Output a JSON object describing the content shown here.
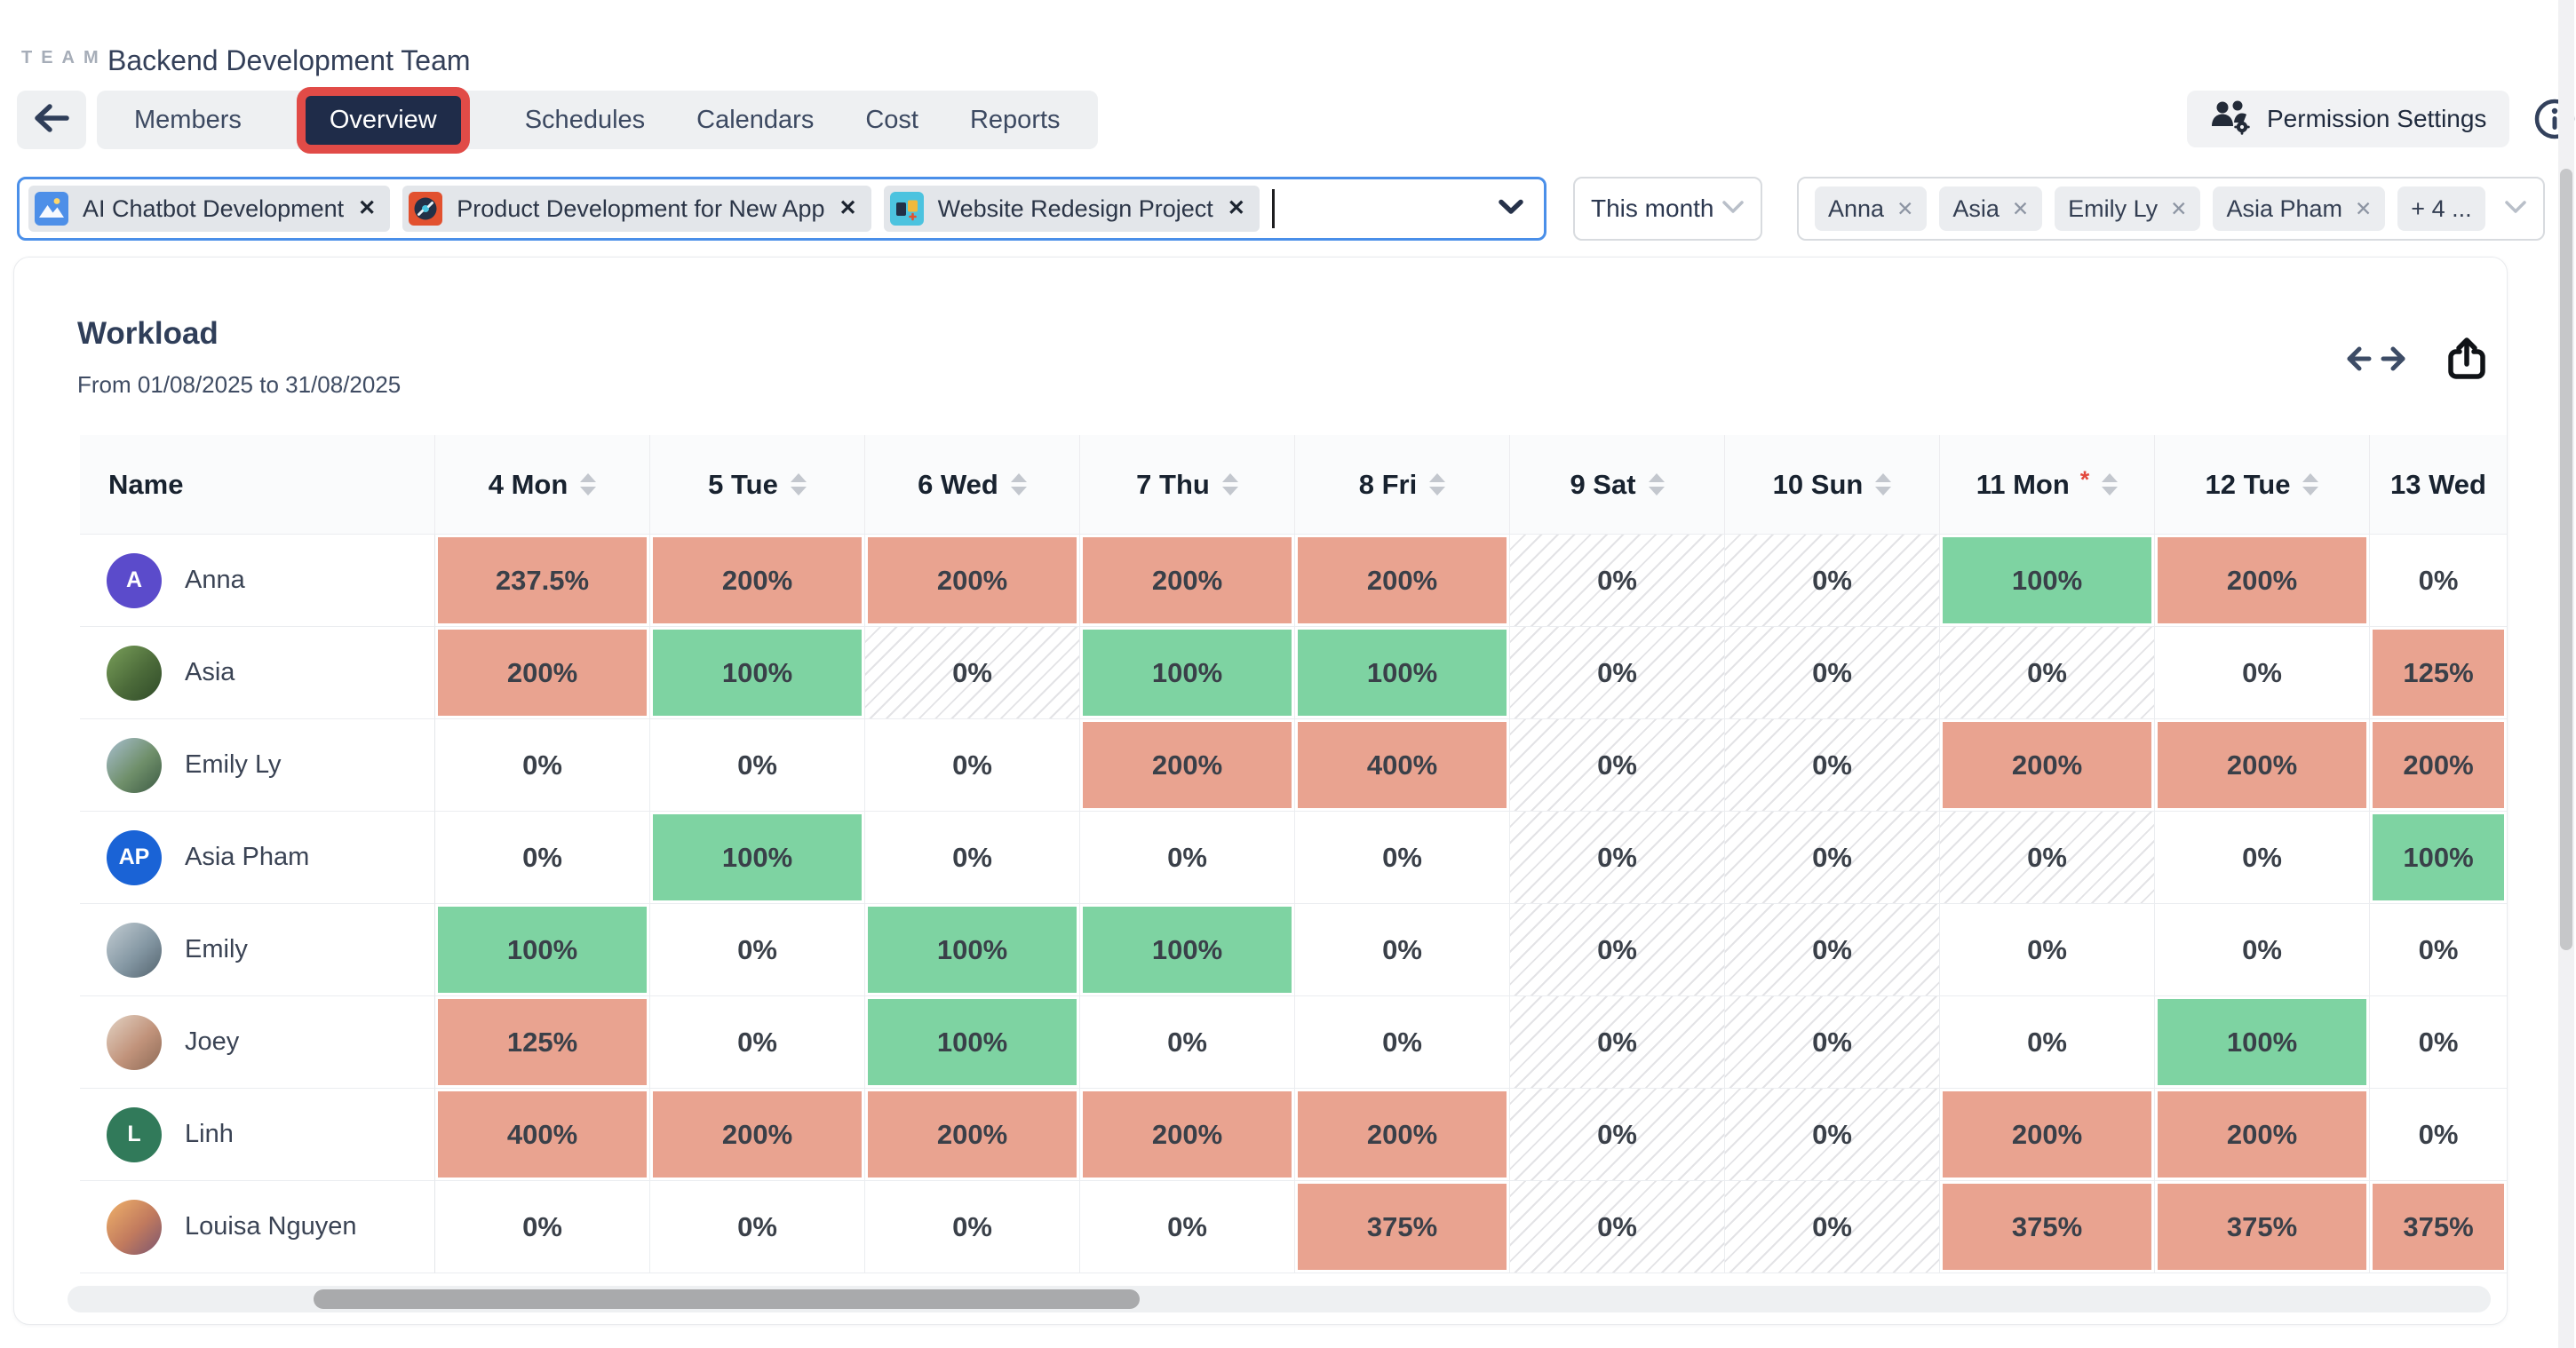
{
  "header": {
    "logo_text": "TEAM",
    "team_name": "Backend Development Team",
    "tabs": [
      {
        "label": "Members",
        "active": false
      },
      {
        "label": "Overview",
        "active": true,
        "highlighted": true
      },
      {
        "label": "Schedules",
        "active": false
      },
      {
        "label": "Calendars",
        "active": false
      },
      {
        "label": "Cost",
        "active": false
      },
      {
        "label": "Reports",
        "active": false
      }
    ],
    "permission_button_label": "Permission Settings"
  },
  "filters": {
    "project_select": {
      "chips": [
        {
          "label": "AI Chatbot Development",
          "icon": "image-mountain-icon",
          "icon_bg": "#4d8fe8"
        },
        {
          "label": "Product Development for New App",
          "icon": "disc-icon",
          "icon_bg": "#e2512f"
        },
        {
          "label": "Website Redesign Project",
          "icon": "design-blocks-icon",
          "icon_bg": "#4cc3df"
        }
      ],
      "remove_glyph": "✕"
    },
    "period_select": {
      "value": "This month"
    },
    "member_select": {
      "chips": [
        {
          "label": "Anna"
        },
        {
          "label": "Asia"
        },
        {
          "label": "Emily Ly"
        },
        {
          "label": "Asia Pham"
        }
      ],
      "overflow_label": "+ 4 ...",
      "remove_glyph": "✕"
    }
  },
  "workload": {
    "title": "Workload",
    "date_range": "From 01/08/2025 to 31/08/2025"
  },
  "table": {
    "columns": [
      {
        "label": "Name",
        "sortable": false
      },
      {
        "label": "4 Mon",
        "sortable": true
      },
      {
        "label": "5 Tue",
        "sortable": true
      },
      {
        "label": "6 Wed",
        "sortable": true
      },
      {
        "label": "7 Thu",
        "sortable": true
      },
      {
        "label": "8 Fri",
        "sortable": true
      },
      {
        "label": "9 Sat",
        "sortable": true,
        "weekend": true
      },
      {
        "label": "10 Sun",
        "sortable": true,
        "weekend": true
      },
      {
        "label": "11 Mon",
        "sortable": true,
        "required": true,
        "required_glyph": "*"
      },
      {
        "label": "12 Tue",
        "sortable": true
      },
      {
        "label": "13 Wed",
        "sortable": false,
        "clipped": true
      }
    ],
    "rows": [
      {
        "name": "Anna",
        "avatar": {
          "type": "initials",
          "text": "A",
          "bg": "#5b4bcb"
        },
        "cells": [
          {
            "value": "237.5%",
            "state": "over"
          },
          {
            "value": "200%",
            "state": "over"
          },
          {
            "value": "200%",
            "state": "over"
          },
          {
            "value": "200%",
            "state": "over"
          },
          {
            "value": "200%",
            "state": "over"
          },
          {
            "value": "0%",
            "state": "off"
          },
          {
            "value": "0%",
            "state": "off"
          },
          {
            "value": "100%",
            "state": "ok"
          },
          {
            "value": "200%",
            "state": "over"
          },
          {
            "value": "0%",
            "state": "zero"
          }
        ]
      },
      {
        "name": "Asia",
        "avatar": {
          "type": "photo",
          "colors": [
            "#7aa05a",
            "#4c6b3a",
            "#2f4a28"
          ]
        },
        "cells": [
          {
            "value": "200%",
            "state": "over"
          },
          {
            "value": "100%",
            "state": "ok"
          },
          {
            "value": "0%",
            "state": "off"
          },
          {
            "value": "100%",
            "state": "ok"
          },
          {
            "value": "100%",
            "state": "ok"
          },
          {
            "value": "0%",
            "state": "off"
          },
          {
            "value": "0%",
            "state": "off"
          },
          {
            "value": "0%",
            "state": "off"
          },
          {
            "value": "0%",
            "state": "zero"
          },
          {
            "value": "125%",
            "state": "over"
          }
        ]
      },
      {
        "name": "Emily Ly",
        "avatar": {
          "type": "photo",
          "colors": [
            "#a8bfd0",
            "#6f8f6a",
            "#3c5a44"
          ]
        },
        "cells": [
          {
            "value": "0%",
            "state": "zero"
          },
          {
            "value": "0%",
            "state": "zero"
          },
          {
            "value": "0%",
            "state": "zero"
          },
          {
            "value": "200%",
            "state": "over"
          },
          {
            "value": "400%",
            "state": "over"
          },
          {
            "value": "0%",
            "state": "off"
          },
          {
            "value": "0%",
            "state": "off"
          },
          {
            "value": "200%",
            "state": "over"
          },
          {
            "value": "200%",
            "state": "over"
          },
          {
            "value": "200%",
            "state": "over"
          }
        ]
      },
      {
        "name": "Asia Pham",
        "avatar": {
          "type": "initials",
          "text": "AP",
          "bg": "#1a63d6"
        },
        "cells": [
          {
            "value": "0%",
            "state": "zero"
          },
          {
            "value": "100%",
            "state": "ok"
          },
          {
            "value": "0%",
            "state": "zero"
          },
          {
            "value": "0%",
            "state": "zero"
          },
          {
            "value": "0%",
            "state": "zero"
          },
          {
            "value": "0%",
            "state": "off"
          },
          {
            "value": "0%",
            "state": "off"
          },
          {
            "value": "0%",
            "state": "off"
          },
          {
            "value": "0%",
            "state": "zero"
          },
          {
            "value": "100%",
            "state": "ok"
          }
        ]
      },
      {
        "name": "Emily",
        "avatar": {
          "type": "photo",
          "colors": [
            "#c3cdd3",
            "#8598a4",
            "#53636e"
          ]
        },
        "cells": [
          {
            "value": "100%",
            "state": "ok"
          },
          {
            "value": "0%",
            "state": "zero"
          },
          {
            "value": "100%",
            "state": "ok"
          },
          {
            "value": "100%",
            "state": "ok"
          },
          {
            "value": "0%",
            "state": "zero"
          },
          {
            "value": "0%",
            "state": "off"
          },
          {
            "value": "0%",
            "state": "off"
          },
          {
            "value": "0%",
            "state": "zero"
          },
          {
            "value": "0%",
            "state": "zero"
          },
          {
            "value": "0%",
            "state": "zero"
          }
        ]
      },
      {
        "name": "Joey",
        "avatar": {
          "type": "photo",
          "colors": [
            "#e3d3c4",
            "#c1937b",
            "#8d6a56"
          ]
        },
        "cells": [
          {
            "value": "125%",
            "state": "over"
          },
          {
            "value": "0%",
            "state": "zero"
          },
          {
            "value": "100%",
            "state": "ok"
          },
          {
            "value": "0%",
            "state": "zero"
          },
          {
            "value": "0%",
            "state": "zero"
          },
          {
            "value": "0%",
            "state": "off"
          },
          {
            "value": "0%",
            "state": "off"
          },
          {
            "value": "0%",
            "state": "zero"
          },
          {
            "value": "100%",
            "state": "ok"
          },
          {
            "value": "0%",
            "state": "zero"
          }
        ]
      },
      {
        "name": "Linh",
        "avatar": {
          "type": "initials",
          "text": "L",
          "bg": "#317a5a"
        },
        "cells": [
          {
            "value": "400%",
            "state": "over"
          },
          {
            "value": "200%",
            "state": "over"
          },
          {
            "value": "200%",
            "state": "over"
          },
          {
            "value": "200%",
            "state": "over"
          },
          {
            "value": "200%",
            "state": "over"
          },
          {
            "value": "0%",
            "state": "off"
          },
          {
            "value": "0%",
            "state": "off"
          },
          {
            "value": "200%",
            "state": "over"
          },
          {
            "value": "200%",
            "state": "over"
          },
          {
            "value": "0%",
            "state": "zero"
          }
        ]
      },
      {
        "name": "Louisa Nguyen",
        "avatar": {
          "type": "photo",
          "colors": [
            "#f0b26a",
            "#c17a5e",
            "#7a5570"
          ]
        },
        "cells": [
          {
            "value": "0%",
            "state": "zero"
          },
          {
            "value": "0%",
            "state": "zero"
          },
          {
            "value": "0%",
            "state": "zero"
          },
          {
            "value": "0%",
            "state": "zero"
          },
          {
            "value": "375%",
            "state": "over"
          },
          {
            "value": "0%",
            "state": "off"
          },
          {
            "value": "0%",
            "state": "off"
          },
          {
            "value": "375%",
            "state": "over"
          },
          {
            "value": "375%",
            "state": "over"
          },
          {
            "value": "375%",
            "state": "over"
          }
        ]
      }
    ]
  },
  "colors": {
    "overload_cell": "#e9a390",
    "normal_cell": "#7ed3a2",
    "tab_active_bg": "#1f2c49",
    "highlight_red": "#e14b47",
    "select_border_blue": "#4a8fe9",
    "required_red": "#e2483d"
  }
}
